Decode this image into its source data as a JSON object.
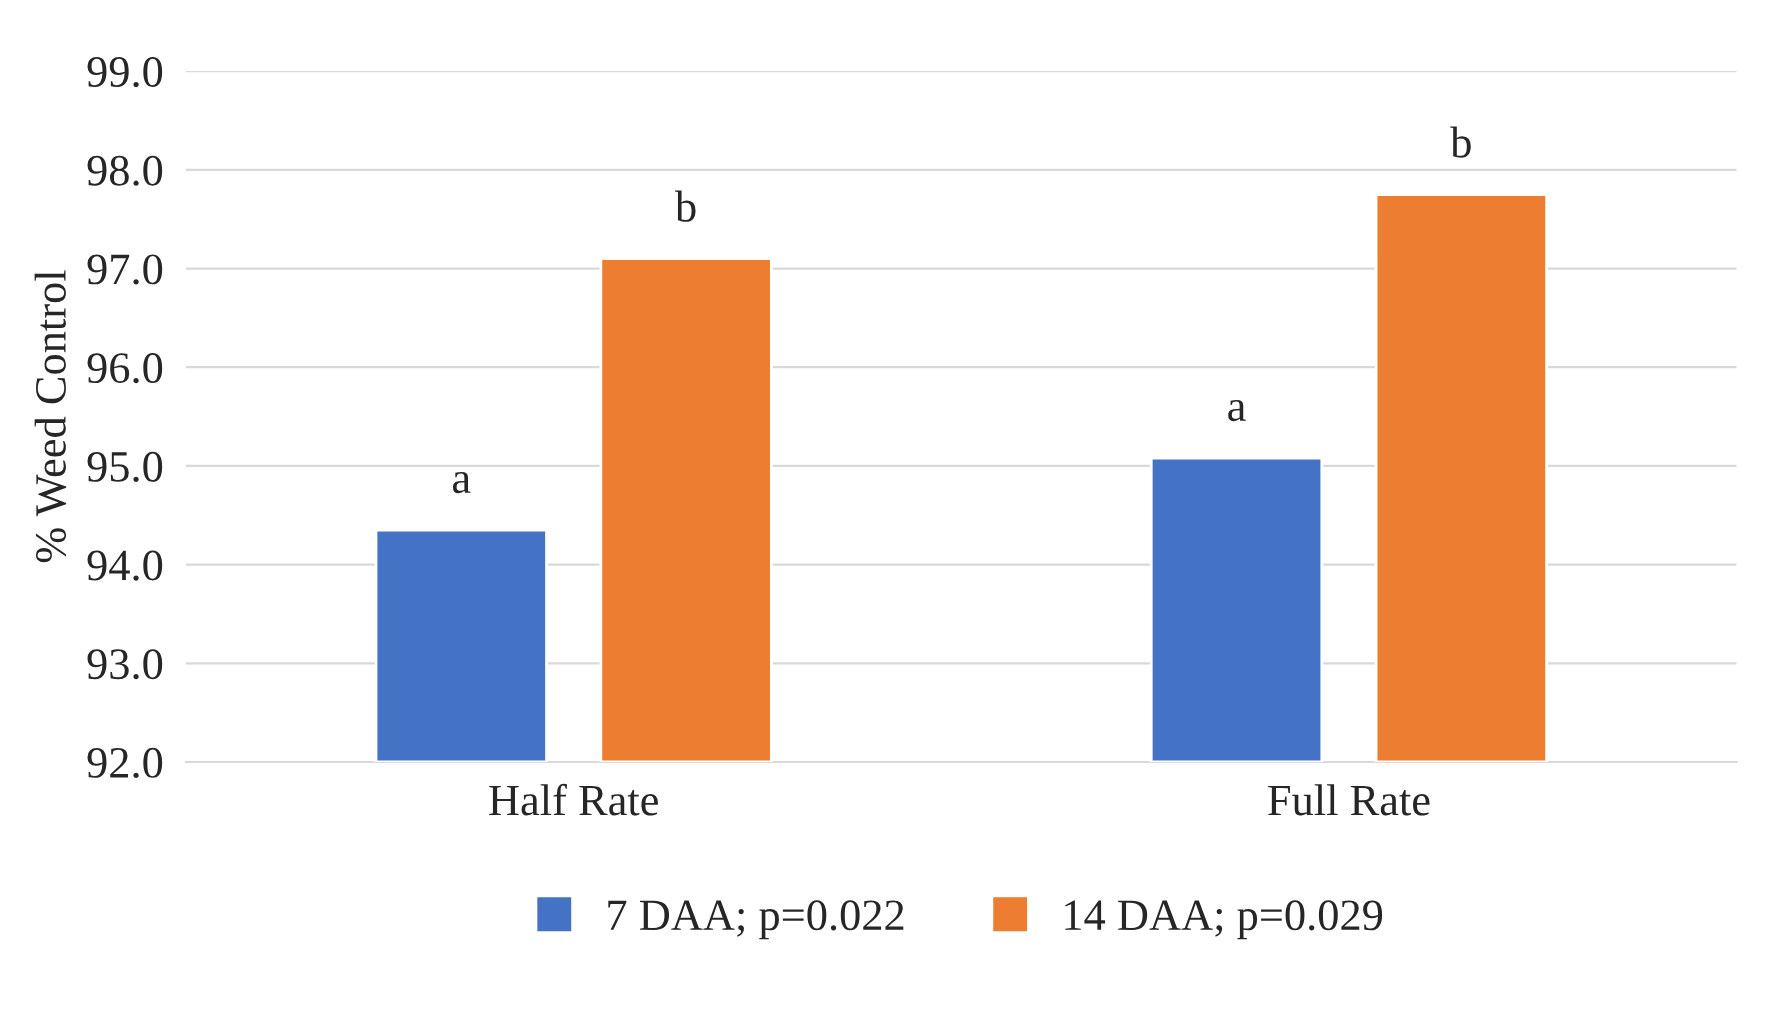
{
  "chart_data": {
    "type": "bar",
    "ylabel": "% Weed Control",
    "categories": [
      "Half Rate",
      "Full Rate"
    ],
    "series": [
      {
        "name": "7 DAA; p=0.022",
        "color": "#4472c4",
        "values": [
          94.35,
          95.08
        ]
      },
      {
        "name": "14 DAA; p=0.029",
        "color": "#ed7d31",
        "values": [
          97.1,
          97.75
        ]
      }
    ],
    "ylim": [
      92.0,
      99.0
    ],
    "yticks": [
      {
        "value": 92,
        "label": "92.0"
      },
      {
        "value": 93,
        "label": "93.0"
      },
      {
        "value": 94,
        "label": "94.0"
      },
      {
        "value": 95,
        "label": "95.0"
      },
      {
        "value": 96,
        "label": "96.0"
      },
      {
        "value": 97,
        "label": "97.0"
      },
      {
        "value": 98,
        "label": "98.0"
      },
      {
        "value": 99,
        "label": "99.0"
      }
    ],
    "grid": "y",
    "legend": "bottom",
    "annotations": [
      "a",
      "b",
      "a",
      "b"
    ]
  }
}
